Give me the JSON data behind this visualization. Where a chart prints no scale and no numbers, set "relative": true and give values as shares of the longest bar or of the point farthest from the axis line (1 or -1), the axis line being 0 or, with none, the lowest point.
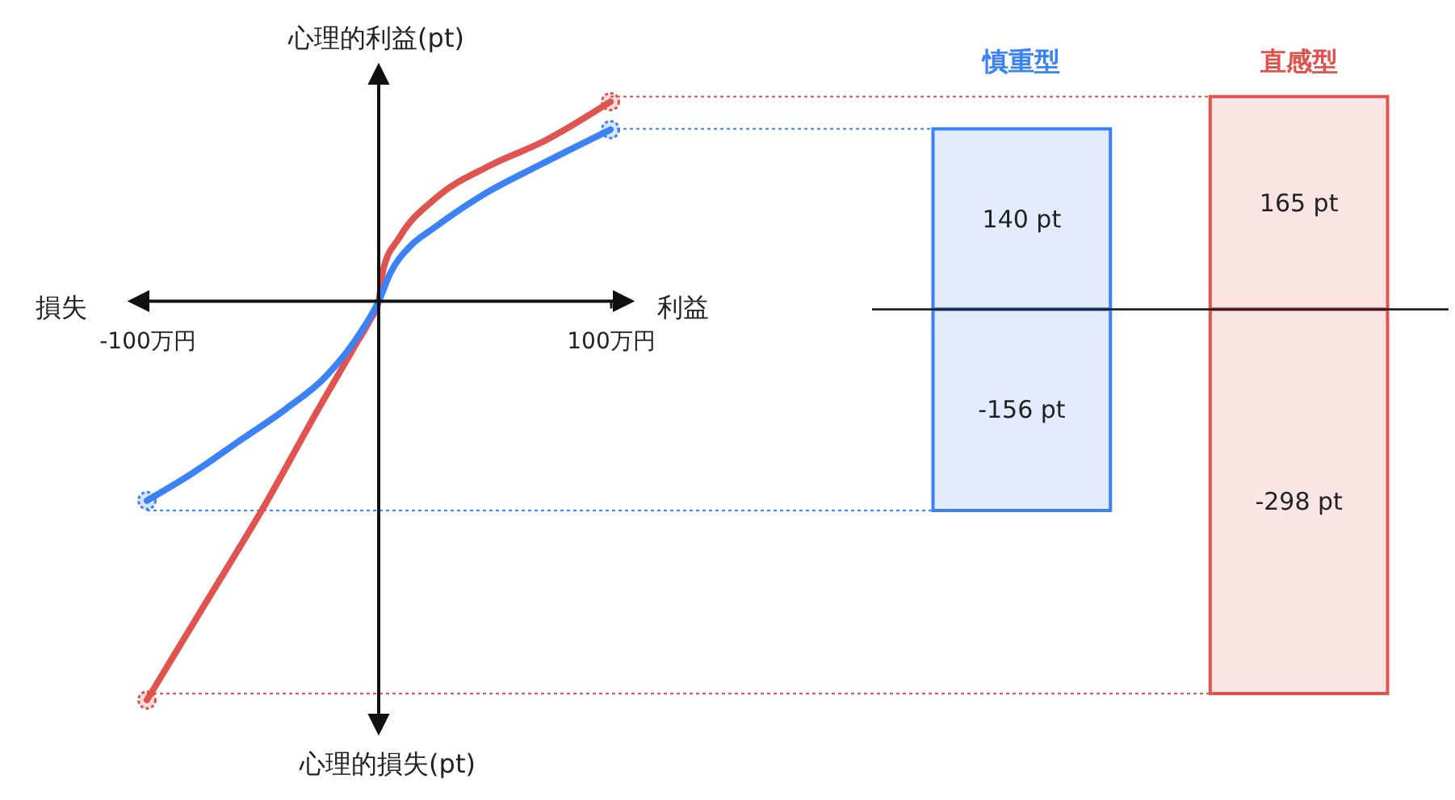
{
  "chart_data": [
    {
      "type": "line",
      "relative": true,
      "xlim": [
        -100,
        100
      ],
      "xticks": [
        {
          "value": -100,
          "label": "-100万円"
        },
        {
          "value": 100,
          "label": "100万円"
        }
      ],
      "series": [
        {
          "color": "#e0534f",
          "x": [
            -100,
            -75,
            -50,
            -25,
            -10,
            -4,
            0,
            2,
            9,
            25,
            48,
            71,
            100
          ],
          "values": [
            -1,
            -0.76,
            -0.52,
            -0.26,
            -0.11,
            -0.05,
            0,
            0.08,
            0.16,
            0.26,
            0.34,
            0.4,
            0.5
          ]
        },
        {
          "color": "#3b82f6",
          "x": [
            -100,
            -80,
            -60,
            -40,
            -23,
            -8,
            0,
            5,
            14,
            23,
            46,
            69,
            100
          ],
          "values": [
            -0.5,
            -0.43,
            -0.35,
            -0.27,
            -0.19,
            -0.08,
            0,
            0.07,
            0.14,
            0.18,
            0.27,
            0.34,
            0.43
          ]
        },
        {
          "type": "scatter",
          "marker": "circle",
          "color": "#e0534f",
          "x": [
            -100,
            100
          ],
          "values": [
            -1,
            0.5
          ]
        },
        {
          "type": "scatter",
          "marker": "circle",
          "color": "#3b82f6",
          "x": [
            -100,
            100
          ],
          "values": [
            -0.5,
            0.43
          ]
        }
      ],
      "annotations": [
        "損失",
        "利益",
        "心理的利益(pt)",
        "心理的損失(pt)"
      ]
    },
    {
      "type": "bar",
      "stacked": true,
      "categories": [
        "慎重型",
        "直感型"
      ],
      "tick_labels": "x",
      "series": [
        {
          "colors": [
            "#3b82f6",
            "#e0534f"
          ],
          "values": [
            140,
            165
          ],
          "value_labels": [
            "140 pt",
            "165 pt"
          ]
        },
        {
          "colors": [
            "#3b82f6",
            "#e0534f"
          ],
          "values": [
            -156,
            -298
          ],
          "value_labels": [
            "-156 pt",
            "-298 pt"
          ]
        }
      ],
      "ref_lines": [
        {
          "axis": "y",
          "value": 0,
          "color": "#222222"
        },
        {
          "axis": "y",
          "value": 140,
          "color": "#3b82f6",
          "line_style": "dotted"
        },
        {
          "axis": "y",
          "value": -156,
          "color": "#3b82f6",
          "line_style": "dotted"
        },
        {
          "axis": "y",
          "value": 165,
          "color": "#e0534f",
          "line_style": "dotted"
        },
        {
          "axis": "y",
          "value": -298,
          "color": "#e0534f",
          "line_style": "dotted"
        }
      ]
    }
  ]
}
